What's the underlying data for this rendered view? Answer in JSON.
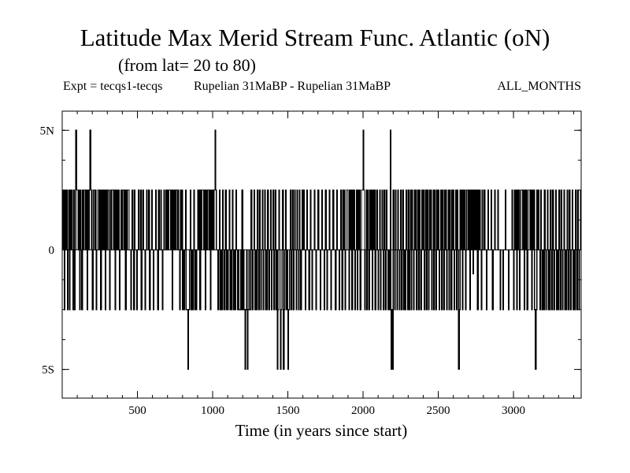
{
  "header": {
    "title": "Latitude Max Merid Stream Func. Atlantic (oN)",
    "subtitle": "(from lat= 20 to 80)",
    "expt": "Expt = tecqs1-tecqs",
    "comparison": "Rupelian  31MaBP - Rupelian  31MaBP",
    "months": "ALL_MONTHS"
  },
  "chart_data": {
    "type": "line",
    "title": "Latitude Max Merid Stream Func. Atlantic (oN)",
    "subtitle": "(from lat= 20 to 80)",
    "xlabel": "Time (in years since start)",
    "ylabel": "",
    "xlim": [
      0,
      3450
    ],
    "ylim": [
      -6.2,
      5.8
    ],
    "grid": false,
    "legend": "none",
    "x_ticks": [
      {
        "value": 500,
        "label": "500"
      },
      {
        "value": 1000,
        "label": "1000"
      },
      {
        "value": 1500,
        "label": "1500"
      },
      {
        "value": 2000,
        "label": "2000"
      },
      {
        "value": 2500,
        "label": "2500"
      },
      {
        "value": 3000,
        "label": "3000"
      }
    ],
    "x_minor_step": 100,
    "y_ticks": [
      {
        "value": 5,
        "label": "5N"
      },
      {
        "value": 0,
        "label": "0"
      },
      {
        "value": -5,
        "label": "5S"
      }
    ],
    "y_minor_step": 1.25,
    "levels": [
      -5,
      -2.5,
      0,
      2.5,
      5
    ],
    "segments": [
      {
        "x_start": 0,
        "x_end": 100,
        "values": [
          2.5,
          0,
          2.5,
          -2.5,
          2.5,
          0,
          2.5,
          -2.5,
          0,
          2.5,
          -2.5,
          2.5,
          0,
          2.5,
          0,
          -2.5,
          2.5,
          -2.5,
          0,
          5,
          2.5
        ]
      },
      {
        "x_start": 100,
        "x_end": 210,
        "values": [
          2.5,
          0,
          2.5,
          -2.5,
          2.5,
          0,
          -2.5,
          2.5,
          0,
          2.5,
          2.5,
          0,
          2.5,
          -2.5,
          2.5,
          0,
          2.5,
          5,
          2.5,
          0,
          -2.5,
          2.5
        ]
      },
      {
        "x_start": 210,
        "x_end": 450,
        "values": [
          2.5,
          0,
          2.5,
          -2.5,
          0,
          2.5,
          2.5,
          0,
          2.5,
          -2.5,
          2.5,
          0,
          2.5,
          0,
          2.5,
          -2.5,
          2.5,
          0,
          2.5,
          2.5,
          0,
          -2.5,
          2.5,
          0,
          2.5,
          2.5,
          0,
          2.5,
          -2.5,
          2.5,
          0,
          2.5,
          0,
          2.5,
          -2.5,
          0,
          2.5,
          0,
          2.5,
          2.5,
          0,
          2.5,
          -2.5,
          2.5,
          0,
          2.5,
          2.5,
          0
        ]
      },
      {
        "x_start": 450,
        "x_end": 700,
        "values": [
          0,
          -2.5,
          0,
          2.5,
          0,
          -2.5,
          2.5,
          0,
          0,
          -2.5,
          0,
          2.5,
          0,
          0,
          2.5,
          -2.5,
          0,
          2.5,
          0,
          0,
          -2.5,
          0,
          2.5,
          0,
          0,
          2.5,
          -2.5,
          0,
          0,
          2.5,
          0,
          -2.5,
          0,
          0,
          2.5,
          0,
          0,
          -2.5,
          2.5,
          0,
          0,
          2.5,
          0,
          -2.5,
          0,
          2.5,
          0,
          0,
          2.5,
          0
        ]
      },
      {
        "x_start": 700,
        "x_end": 900,
        "values": [
          2.5,
          0,
          2.5,
          2.5,
          0,
          2.5,
          -2.5,
          2.5,
          0,
          2.5,
          0,
          2.5,
          2.5,
          0,
          2.5,
          0,
          -2.5,
          2.5,
          0,
          2.5,
          -2.5,
          0,
          -2.5,
          0,
          2.5,
          -2.5,
          -2.5,
          -5,
          -2.5,
          0,
          2.5,
          -2.5,
          0,
          -2.5,
          0,
          2.5,
          -2.5,
          0,
          -2.5,
          0
        ]
      },
      {
        "x_start": 900,
        "x_end": 1030,
        "values": [
          2.5,
          0,
          2.5,
          -2.5,
          2.5,
          0,
          2.5,
          2.5,
          0,
          2.5,
          -2.5,
          2.5,
          0,
          2.5,
          2.5,
          0,
          2.5,
          -2.5,
          2.5,
          0,
          2.5,
          0,
          2.5,
          5,
          2.5,
          0
        ]
      },
      {
        "x_start": 1030,
        "x_end": 1250,
        "values": [
          0,
          -2.5,
          0,
          2.5,
          -2.5,
          0,
          -2.5,
          2.5,
          0,
          -2.5,
          0,
          2.5,
          -2.5,
          0,
          -2.5,
          0,
          2.5,
          -2.5,
          0,
          -2.5,
          2.5,
          0,
          -2.5,
          0,
          -2.5,
          2.5,
          0,
          -2.5,
          0,
          -2.5,
          -2.5,
          0,
          -2.5,
          2.5,
          -2.5,
          0,
          -2.5,
          -5,
          -2.5,
          0,
          -5,
          -2.5,
          0,
          -2.5
        ]
      },
      {
        "x_start": 1250,
        "x_end": 1400,
        "values": [
          -2.5,
          2.5,
          0,
          -2.5,
          0,
          2.5,
          -2.5,
          0,
          -2.5,
          2.5,
          0,
          -2.5,
          2.5,
          0,
          -2.5,
          0,
          2.5,
          -2.5,
          0,
          2.5,
          -2.5,
          0,
          -2.5,
          2.5,
          0,
          -2.5,
          0,
          2.5,
          -2.5,
          0
        ]
      },
      {
        "x_start": 1400,
        "x_end": 1600,
        "values": [
          2.5,
          -2.5,
          0,
          2.5,
          -2.5,
          0,
          -5,
          -2.5,
          2.5,
          0,
          -5,
          -2.5,
          0,
          2.5,
          -5,
          -2.5,
          0,
          2.5,
          -2.5,
          0,
          -5,
          -2.5,
          0,
          2.5,
          -2.5,
          0,
          2.5,
          -2.5,
          0,
          2.5,
          0,
          -2.5,
          2.5,
          0,
          -2.5,
          2.5,
          0,
          -2.5,
          0,
          2.5
        ]
      },
      {
        "x_start": 1600,
        "x_end": 1850,
        "values": [
          0,
          2.5,
          0,
          -2.5,
          0,
          2.5,
          0,
          0,
          -2.5,
          0,
          2.5,
          0,
          -2.5,
          0,
          0,
          2.5,
          0,
          -2.5,
          0,
          0,
          2.5,
          0,
          0,
          -2.5,
          0,
          2.5,
          0,
          0,
          -2.5,
          0,
          2.5,
          0,
          -2.5,
          0,
          0,
          2.5,
          0,
          -2.5,
          0,
          0,
          2.5,
          0,
          0,
          -2.5,
          0,
          2.5,
          0,
          0,
          -2.5,
          0
        ]
      },
      {
        "x_start": 1850,
        "x_end": 2100,
        "values": [
          2.5,
          0,
          -2.5,
          2.5,
          0,
          2.5,
          -2.5,
          0,
          2.5,
          2.5,
          0,
          -2.5,
          2.5,
          0,
          2.5,
          -2.5,
          2.5,
          0,
          2.5,
          -2.5,
          0,
          2.5,
          -2.5,
          2.5,
          0,
          2.5,
          -2.5,
          0,
          2.5,
          2.5,
          5,
          2.5,
          -2.5,
          0,
          2.5,
          -2.5,
          2.5,
          0,
          -2.5,
          2.5,
          0,
          2.5,
          -2.5,
          2.5,
          0,
          2.5,
          -2.5,
          0,
          2.5,
          0
        ]
      },
      {
        "x_start": 2100,
        "x_end": 2300,
        "values": [
          -2.5,
          0,
          2.5,
          -2.5,
          0,
          2.5,
          0,
          -2.5,
          2.5,
          0,
          -2.5,
          2.5,
          0,
          -2.5,
          0,
          -2.5,
          5,
          -5,
          -2.5,
          -5,
          2.5,
          0,
          -2.5,
          2.5,
          0,
          -2.5,
          2.5,
          0,
          -2.5,
          0,
          2.5,
          -2.5,
          0,
          2.5,
          -2.5,
          0,
          -2.5,
          2.5,
          0,
          -2.5
        ]
      },
      {
        "x_start": 2300,
        "x_end": 2600,
        "values": [
          2.5,
          -2.5,
          0,
          2.5,
          -2.5,
          2.5,
          0,
          -2.5,
          2.5,
          0,
          2.5,
          -2.5,
          0,
          2.5,
          -2.5,
          2.5,
          0,
          -2.5,
          2.5,
          0,
          2.5,
          -2.5,
          0,
          2.5,
          -2.5,
          2.5,
          0,
          -2.5,
          2.5,
          0,
          2.5,
          -2.5,
          0,
          2.5,
          -2.5,
          2.5,
          0,
          -2.5,
          2.5,
          0,
          2.5,
          -2.5,
          0,
          2.5,
          -2.5,
          2.5,
          0,
          -2.5,
          2.5,
          0,
          2.5,
          -2.5,
          0,
          2.5,
          -2.5,
          2.5,
          0,
          -2.5,
          2.5,
          0
        ]
      },
      {
        "x_start": 2600,
        "x_end": 2800,
        "values": [
          2.5,
          -2.5,
          0,
          2.5,
          -2.5,
          2.5,
          0,
          -5,
          -2.5,
          2.5,
          0,
          2.5,
          -2.5,
          2.5,
          0,
          2.5,
          -2.5,
          0,
          2.5,
          2.5,
          0,
          2.5,
          -2.5,
          2.5,
          0,
          2.5,
          -1,
          2.5,
          0,
          2.5,
          0,
          2.5,
          -2.5,
          2.5,
          0,
          2.5,
          0,
          -2.5,
          2.5,
          0
        ]
      },
      {
        "x_start": 2800,
        "x_end": 2990,
        "values": [
          0,
          2.5,
          0,
          0,
          -2.5,
          0,
          2.5,
          0,
          0,
          0,
          2.5,
          0,
          -2.5,
          0,
          0,
          2.5,
          0,
          0,
          0,
          2.5,
          0,
          0,
          -2.5,
          0,
          0,
          0,
          -2.5,
          0,
          0,
          2.5,
          0,
          0,
          0,
          -2.5,
          0,
          0,
          0,
          0
        ]
      },
      {
        "x_start": 2990,
        "x_end": 3200,
        "values": [
          2.5,
          0,
          -2.5,
          2.5,
          0,
          2.5,
          -2.5,
          2.5,
          0,
          2.5,
          -2.5,
          0,
          2.5,
          2.5,
          0,
          2.5,
          -2.5,
          2.5,
          0,
          2.5,
          -2.5,
          0,
          2.5,
          2.5,
          0,
          2.5,
          -2.5,
          2.5,
          0,
          2.5,
          -2.5,
          -5,
          -2.5,
          2.5,
          0,
          2.5,
          0,
          -2.5,
          2.5,
          0,
          -2.5,
          0
        ]
      },
      {
        "x_start": 3200,
        "x_end": 3450,
        "values": [
          -2.5,
          2.5,
          0,
          -2.5,
          0,
          2.5,
          -2.5,
          0,
          -2.5,
          2.5,
          0,
          -2.5,
          2.5,
          0,
          -2.5,
          0,
          2.5,
          -2.5,
          0,
          -2.5,
          2.5,
          0,
          -2.5,
          2.5,
          0,
          -2.5,
          0,
          2.5,
          -2.5,
          0,
          -2.5,
          2.5,
          0,
          -2.5,
          2.5,
          0,
          -2.5,
          0,
          2.5,
          -2.5,
          0,
          -2.5,
          2.5,
          0,
          -2.5,
          2.5,
          0,
          -2.5,
          0,
          2.5
        ]
      }
    ]
  }
}
